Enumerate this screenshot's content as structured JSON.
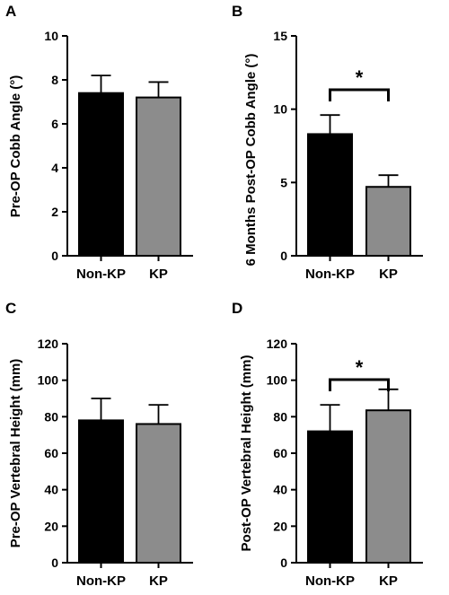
{
  "colors": {
    "bar_nonkp": "#000000",
    "bar_kp": "#8c8c8c",
    "axis": "#000000"
  },
  "chart_data": [
    {
      "panel": "A",
      "type": "bar",
      "categories": [
        "Non-KP",
        "KP"
      ],
      "values": [
        7.4,
        7.2
      ],
      "errors": [
        0.8,
        0.7
      ],
      "ylabel": "Pre-OP Cobb Angle (°)",
      "ylim": [
        0,
        10
      ],
      "yticks": [
        0,
        2,
        4,
        6,
        8,
        10
      ],
      "significance": null
    },
    {
      "panel": "B",
      "type": "bar",
      "categories": [
        "Non-KP",
        "KP"
      ],
      "values": [
        8.3,
        4.7
      ],
      "errors": [
        1.3,
        0.8
      ],
      "ylabel": "6 Months Post-OP Cobb Angle (°)",
      "ylim": [
        0,
        15
      ],
      "yticks": [
        0,
        5,
        10,
        15
      ],
      "significance": "*"
    },
    {
      "panel": "C",
      "type": "bar",
      "categories": [
        "Non-KP",
        "KP"
      ],
      "values": [
        78,
        76
      ],
      "errors": [
        12,
        10.5
      ],
      "ylabel": "Pre-OP Vertebral Height (mm)",
      "ylim": [
        0,
        120
      ],
      "yticks": [
        0,
        20,
        40,
        60,
        80,
        100,
        120
      ],
      "significance": null
    },
    {
      "panel": "D",
      "type": "bar",
      "categories": [
        "Non-KP",
        "KP"
      ],
      "values": [
        72,
        83.5
      ],
      "errors": [
        14.5,
        11.5
      ],
      "ylabel": "Post-OP Vertebral Height (mm)",
      "ylim": [
        0,
        120
      ],
      "yticks": [
        0,
        20,
        40,
        60,
        80,
        100,
        120
      ],
      "significance": "*"
    }
  ]
}
